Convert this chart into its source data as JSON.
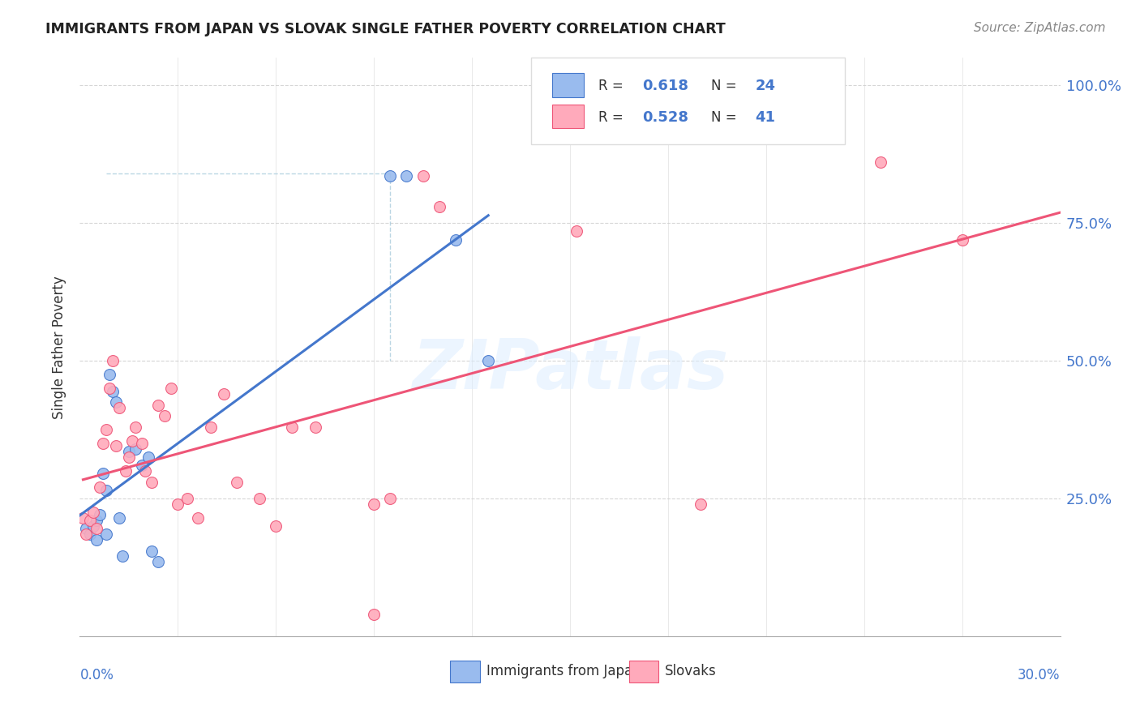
{
  "title": "IMMIGRANTS FROM JAPAN VS SLOVAK SINGLE FATHER POVERTY CORRELATION CHART",
  "source": "Source: ZipAtlas.com",
  "ylabel": "Single Father Poverty",
  "legend_label1": "Immigrants from Japan",
  "legend_label2": "Slovaks",
  "R1": "0.618",
  "N1": "24",
  "R2": "0.528",
  "N2": "41",
  "color_blue_fill": "#99BBEE",
  "color_pink_fill": "#FFAABB",
  "color_blue_line": "#4477CC",
  "color_pink_line": "#EE5577",
  "color_dashed": "#AACCDD",
  "watermark": "ZIPatlas",
  "japan_x": [
    0.002,
    0.003,
    0.004,
    0.005,
    0.005,
    0.006,
    0.007,
    0.008,
    0.008,
    0.009,
    0.01,
    0.011,
    0.012,
    0.013,
    0.015,
    0.017,
    0.019,
    0.021,
    0.022,
    0.024,
    0.095,
    0.1,
    0.115,
    0.125
  ],
  "japan_y": [
    0.195,
    0.185,
    0.2,
    0.21,
    0.175,
    0.22,
    0.295,
    0.265,
    0.185,
    0.475,
    0.445,
    0.425,
    0.215,
    0.145,
    0.335,
    0.34,
    0.31,
    0.325,
    0.155,
    0.135,
    0.835,
    0.835,
    0.72,
    0.5
  ],
  "slovak_x": [
    0.001,
    0.002,
    0.003,
    0.004,
    0.005,
    0.006,
    0.007,
    0.008,
    0.009,
    0.01,
    0.011,
    0.012,
    0.014,
    0.015,
    0.016,
    0.017,
    0.019,
    0.02,
    0.022,
    0.024,
    0.026,
    0.028,
    0.03,
    0.033,
    0.036,
    0.04,
    0.044,
    0.048,
    0.055,
    0.06,
    0.065,
    0.072,
    0.09,
    0.095,
    0.105,
    0.11,
    0.152,
    0.19,
    0.245,
    0.27,
    0.09
  ],
  "slovak_y": [
    0.215,
    0.185,
    0.21,
    0.225,
    0.195,
    0.27,
    0.35,
    0.375,
    0.45,
    0.5,
    0.345,
    0.415,
    0.3,
    0.325,
    0.355,
    0.38,
    0.35,
    0.3,
    0.28,
    0.42,
    0.4,
    0.45,
    0.24,
    0.25,
    0.215,
    0.38,
    0.44,
    0.28,
    0.25,
    0.2,
    0.38,
    0.38,
    0.24,
    0.25,
    0.835,
    0.78,
    0.735,
    0.24,
    0.86,
    0.72,
    0.04
  ],
  "xlim": [
    0.0,
    0.3
  ],
  "ylim": [
    0.0,
    1.05
  ],
  "xtick_positions": [
    0.0,
    0.03,
    0.06,
    0.09,
    0.12,
    0.15,
    0.18,
    0.21,
    0.24,
    0.27,
    0.3
  ],
  "ytick_positions": [
    0.0,
    0.25,
    0.5,
    0.75,
    1.0
  ],
  "ytick_labels": [
    "",
    "25.0%",
    "50.0%",
    "75.0%",
    "100.0%"
  ]
}
